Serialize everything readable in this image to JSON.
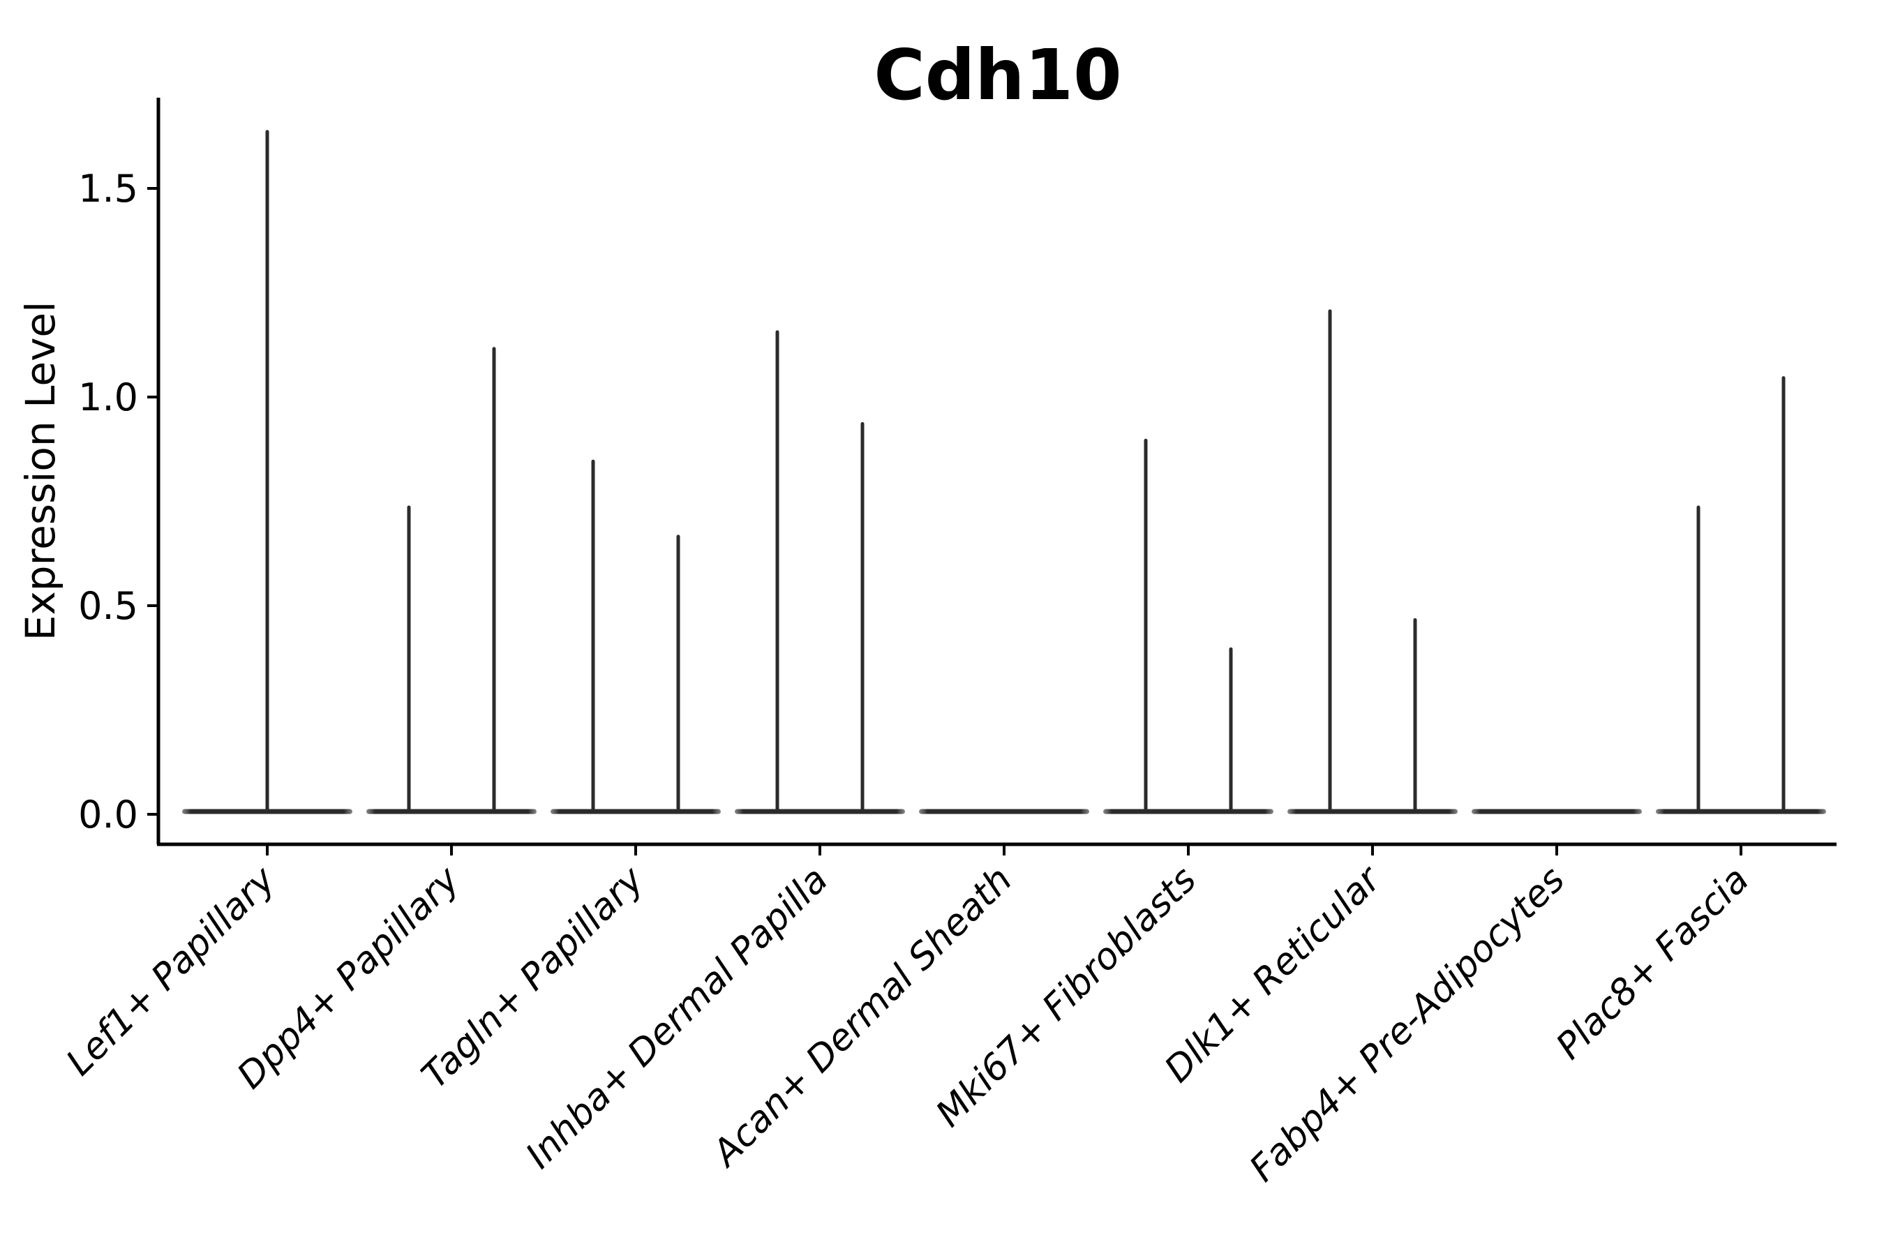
{
  "chart_data": {
    "type": "violin",
    "title": "Cdh10",
    "ylabel": "Expression Level",
    "xlabel": "",
    "ylim": [
      -0.07,
      1.72
    ],
    "grid": false,
    "legend": "none",
    "style_note": "Seurat-style single-cell violin plot: each cluster has a flat density lens at expression 0 plus thin needle spikes rising to the maximum expression of rare expressing cells; spikes sit at the center of each sub-violin (left/right split within a cluster).",
    "yticks": [
      {
        "value": 0.0,
        "label": "0.0"
      },
      {
        "value": 0.5,
        "label": "0.5"
      },
      {
        "value": 1.0,
        "label": "1.0"
      },
      {
        "value": 1.5,
        "label": "1.5"
      }
    ],
    "categories": [
      {
        "label": "Lef1+ Papillary",
        "spikes": [
          {
            "position": "center",
            "max": 1.64
          }
        ]
      },
      {
        "label": "Dpp4+ Papillary",
        "spikes": [
          {
            "position": "left",
            "max": 0.74
          },
          {
            "position": "right",
            "max": 1.12
          }
        ]
      },
      {
        "label": "Tagln+ Papillary",
        "spikes": [
          {
            "position": "left",
            "max": 0.85
          },
          {
            "position": "right",
            "max": 0.67
          }
        ]
      },
      {
        "label": "Inhba+ Dermal Papilla",
        "spikes": [
          {
            "position": "left",
            "max": 1.16
          },
          {
            "position": "right",
            "max": 0.94
          }
        ]
      },
      {
        "label": "Acan+ Dermal Sheath",
        "spikes": []
      },
      {
        "label": "Mki67+ Fibroblasts",
        "spikes": [
          {
            "position": "left",
            "max": 0.9
          },
          {
            "position": "right",
            "max": 0.4
          }
        ]
      },
      {
        "label": "Dlk1+ Reticular",
        "spikes": [
          {
            "position": "left",
            "max": 1.21
          },
          {
            "position": "right",
            "max": 0.47
          }
        ]
      },
      {
        "label": "Fabp4+ Pre-Adipocytes",
        "spikes": []
      },
      {
        "label": "Plac8+ Fascia",
        "spikes": [
          {
            "position": "left",
            "max": 0.74
          },
          {
            "position": "right",
            "max": 1.05
          }
        ]
      }
    ],
    "colors": {
      "ink": "#000000",
      "violin": "#2b2b2b",
      "violin_tip": "#7a7a7a",
      "background": "#ffffff"
    }
  }
}
